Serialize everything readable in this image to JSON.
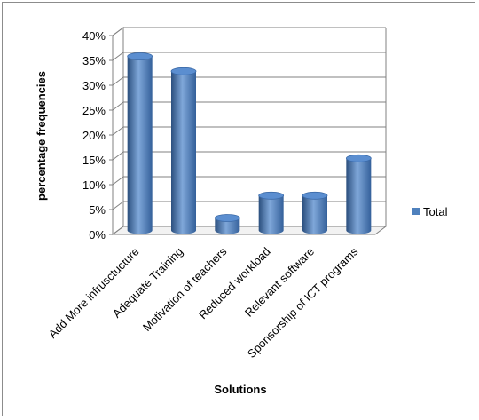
{
  "chart_data": {
    "type": "bar",
    "categories": [
      "Add More infrusctucture",
      "Adequate Training",
      "Motivation of teachers",
      "Reduced  workload",
      "Relevant software",
      "Sponsorship of ICT programs"
    ],
    "series": [
      {
        "name": "Total",
        "values": [
          35,
          32,
          2.5,
          7,
          7,
          14.5
        ]
      }
    ],
    "ylabel": "percentage frequencies",
    "xlabel": "Solutions",
    "ylim": [
      0,
      40
    ],
    "yticks": [
      "0%",
      "5%",
      "10%",
      "15%",
      "20%",
      "25%",
      "30%",
      "35%",
      "40%"
    ],
    "grid": true,
    "legend": "right",
    "colors": {
      "bar": "#4f81bd",
      "bar_dark": "#2b4f7e",
      "bar_light": "#7fa7d9",
      "grid": "#808080"
    }
  }
}
